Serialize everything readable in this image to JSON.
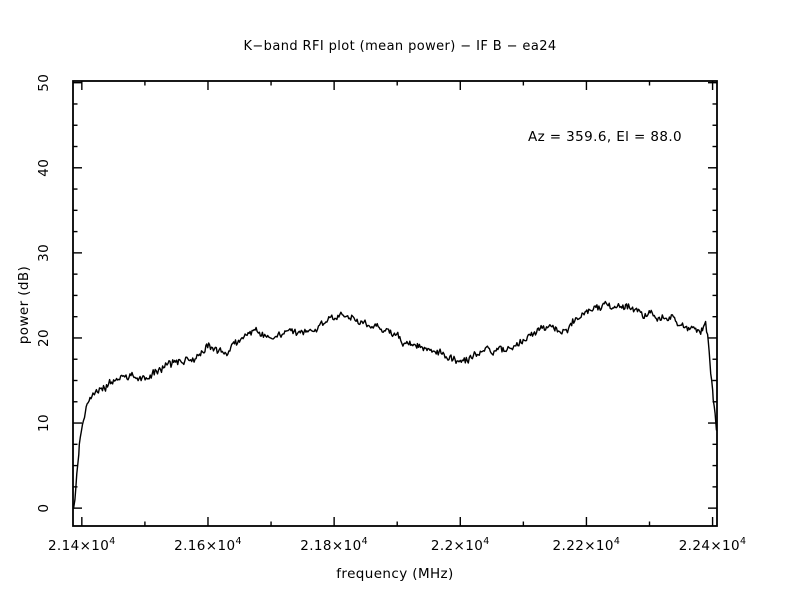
{
  "title": "K−band RFI plot (mean power) − IF B − ea24",
  "annotation": "Az = 359.6, El = 88.0",
  "chart_data": {
    "type": "line",
    "title": "K−band RFI plot (mean power) − IF B − ea24",
    "xlabel": "frequency (MHz)",
    "ylabel": "power (dB)",
    "xlim": [
      21386,
      22407
    ],
    "ylim": [
      -2.1,
      50.2
    ],
    "grid": false,
    "frame": "box with inward ticks on all four sides",
    "line_color": "#000000",
    "background_color": "#ffffff",
    "x_ticks": {
      "major_values": [
        21400,
        21600,
        21800,
        22000,
        22200,
        22400
      ],
      "major_labels": [
        "2.14×10⁴",
        "2.16×10⁴",
        "2.18×10⁴",
        "2.2×10⁴",
        "2.22×10⁴",
        "2.24×10⁴"
      ],
      "minor_values": [
        21500,
        21700,
        21900,
        22100,
        22300
      ]
    },
    "y_ticks": {
      "major_values": [
        0,
        10,
        20,
        30,
        40,
        50
      ],
      "major_labels": [
        "0",
        "10",
        "20",
        "30",
        "40",
        "50"
      ],
      "minor_step": 2.5
    },
    "annotation": {
      "text": "Az = 359.6, El = 88.0",
      "position": "upper right inside plot"
    },
    "noise_amplitude_db": 0.3,
    "series": [
      {
        "name": "mean power",
        "color": "#000000",
        "points": [
          [
            21387,
            0
          ],
          [
            21389,
            1
          ],
          [
            21392,
            4
          ],
          [
            21396,
            7.5
          ],
          [
            21401,
            10
          ],
          [
            21407,
            11.8
          ],
          [
            21413,
            12.8
          ],
          [
            21420,
            13.5
          ],
          [
            21428,
            13.9
          ],
          [
            21436,
            14.2
          ],
          [
            21444,
            14.6
          ],
          [
            21452,
            14.9
          ],
          [
            21460,
            15.2
          ],
          [
            21470,
            15.5
          ],
          [
            21478,
            15.6
          ],
          [
            21486,
            15.4
          ],
          [
            21494,
            15.2
          ],
          [
            21502,
            15.3
          ],
          [
            21510,
            15.6
          ],
          [
            21520,
            16.1
          ],
          [
            21528,
            16.5
          ],
          [
            21535,
            16.9
          ],
          [
            21544,
            17.2
          ],
          [
            21552,
            17.1
          ],
          [
            21560,
            17.2
          ],
          [
            21571,
            17.4
          ],
          [
            21578,
            17.6
          ],
          [
            21585,
            17.9
          ],
          [
            21592,
            18.5
          ],
          [
            21598,
            19.2
          ],
          [
            21604,
            18.9
          ],
          [
            21610,
            18.8
          ],
          [
            21618,
            18.6
          ],
          [
            21624,
            18.4
          ],
          [
            21630,
            18.1
          ],
          [
            21636,
            18.8
          ],
          [
            21642,
            19.4
          ],
          [
            21651,
            19.8
          ],
          [
            21662,
            20.4
          ],
          [
            21670,
            20.8
          ],
          [
            21680,
            20.9
          ],
          [
            21690,
            20.2
          ],
          [
            21700,
            19.9
          ],
          [
            21711,
            20.3
          ],
          [
            21722,
            20.8
          ],
          [
            21730,
            20.9
          ],
          [
            21740,
            20.6
          ],
          [
            21752,
            20.7
          ],
          [
            21762,
            20.9
          ],
          [
            21772,
            21.2
          ],
          [
            21782,
            21.7
          ],
          [
            21790,
            22.1
          ],
          [
            21798,
            22.3
          ],
          [
            21806,
            22.8
          ],
          [
            21813,
            22.5
          ],
          [
            21820,
            22.6
          ],
          [
            21830,
            22.2
          ],
          [
            21841,
            21.9
          ],
          [
            21852,
            21.5
          ],
          [
            21862,
            21.4
          ],
          [
            21873,
            21.2
          ],
          [
            21883,
            20.9
          ],
          [
            21894,
            20.6
          ],
          [
            21901,
            20.1
          ],
          [
            21909,
            19.6
          ],
          [
            21920,
            19.3
          ],
          [
            21932,
            19.0
          ],
          [
            21944,
            18.8
          ],
          [
            21957,
            18.6
          ],
          [
            21968,
            18.2
          ],
          [
            21979,
            17.8
          ],
          [
            21990,
            17.4
          ],
          [
            22000,
            17.2
          ],
          [
            22008,
            17.4
          ],
          [
            22016,
            17.7
          ],
          [
            22027,
            18.0
          ],
          [
            22035,
            18.4
          ],
          [
            22043,
            18.8
          ],
          [
            22052,
            18.1
          ],
          [
            22058,
            18.5
          ],
          [
            22063,
            19.1
          ],
          [
            22071,
            18.5
          ],
          [
            22078,
            18.7
          ],
          [
            22085,
            18.9
          ],
          [
            22095,
            19.3
          ],
          [
            22105,
            19.9
          ],
          [
            22116,
            20.6
          ],
          [
            22125,
            21.0
          ],
          [
            22132,
            21.3
          ],
          [
            22142,
            21.3
          ],
          [
            22151,
            21.2
          ],
          [
            22158,
            20.9
          ],
          [
            22163,
            20.5
          ],
          [
            22170,
            21.0
          ],
          [
            22175,
            21.5
          ],
          [
            22183,
            22.0
          ],
          [
            22190,
            22.5
          ],
          [
            22199,
            23.0
          ],
          [
            22206,
            23.3
          ],
          [
            22215,
            23.5
          ],
          [
            22222,
            23.7
          ],
          [
            22233,
            24.0
          ],
          [
            22240,
            23.7
          ],
          [
            22246,
            23.5
          ],
          [
            22253,
            23.6
          ],
          [
            22262,
            23.8
          ],
          [
            22270,
            23.5
          ],
          [
            22281,
            23.2
          ],
          [
            22290,
            22.6
          ],
          [
            22298,
            22.7
          ],
          [
            22306,
            22.9
          ],
          [
            22314,
            22.4
          ],
          [
            22322,
            22.1
          ],
          [
            22330,
            22.4
          ],
          [
            22338,
            22.3
          ],
          [
            22346,
            21.8
          ],
          [
            22354,
            21.4
          ],
          [
            22362,
            21.2
          ],
          [
            22370,
            21.1
          ],
          [
            22378,
            20.9
          ],
          [
            22384,
            21.0
          ],
          [
            22389,
            21.4
          ],
          [
            22393,
            19.5
          ],
          [
            22397,
            16.0
          ],
          [
            22401,
            12.8
          ],
          [
            22404,
            10.8
          ],
          [
            22406,
            9.2
          ]
        ]
      }
    ]
  }
}
